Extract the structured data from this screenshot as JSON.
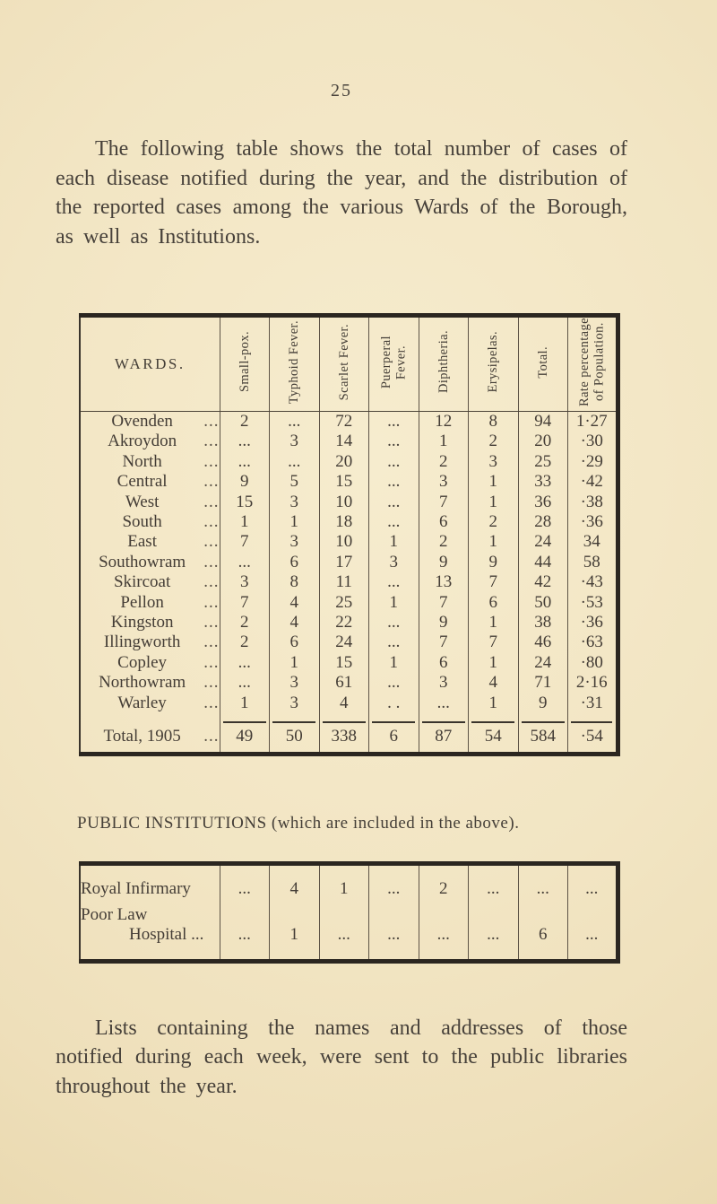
{
  "page": {
    "number": "25",
    "intro": "The following table shows the total number of cases of each disease notified during the year, and the distribution of the reported cases among the various Wards of the Borough, as well as Institutions.",
    "closing": "Lists containing the names and addresses of those notified during each week, were sent to the public libraries throughout the year."
  },
  "colors": {
    "paper": "#f2e5c3",
    "ink": "#46403a",
    "rule_heavy": "#2b2620",
    "rule_light": "#5d5346"
  },
  "main_table": {
    "headers": {
      "wards": "WARDS.",
      "smallpox": "Small-pox.",
      "typhoid": "Typhoid Fever.",
      "scarlet": "Scarlet Fever.",
      "puerperal_1": "Puerperal",
      "puerperal_2": "Fever.",
      "diphtheria": "Diphtheria.",
      "erysipelas": "Erysipelas.",
      "total": "Total.",
      "rate_1": "Rate percentage",
      "rate_2": "of Population."
    },
    "rows": [
      {
        "name": "Ovenden",
        "leader": "...",
        "cells": [
          "2",
          "...",
          "72",
          "...",
          "12",
          "8",
          "94",
          "1·27"
        ]
      },
      {
        "name": "Akroydon",
        "leader": "...",
        "cells": [
          "...",
          "3",
          "14",
          "...",
          "1",
          "2",
          "20",
          "·30"
        ]
      },
      {
        "name": "North",
        "leader": "...",
        "cells": [
          "...",
          "...",
          "20",
          "...",
          "2",
          "3",
          "25",
          "·29"
        ]
      },
      {
        "name": "Central",
        "leader": "...",
        "cells": [
          "9",
          "5",
          "15",
          "...",
          "3",
          "1",
          "33",
          "·42"
        ]
      },
      {
        "name": "West",
        "leader": "...",
        "cells": [
          "15",
          "3",
          "10",
          "...",
          "7",
          "1",
          "36",
          "·38"
        ]
      },
      {
        "name": "South",
        "leader": "...",
        "cells": [
          "1",
          "1",
          "18",
          "...",
          "6",
          "2",
          "28",
          "·36"
        ]
      },
      {
        "name": "East",
        "leader": "...",
        "cells": [
          "7",
          "3",
          "10",
          "1",
          "2",
          "1",
          "24",
          "34"
        ]
      },
      {
        "name": "Southowram",
        "leader": "...",
        "cells": [
          "...",
          "6",
          "17",
          "3",
          "9",
          "9",
          "44",
          "58"
        ]
      },
      {
        "name": "Skircoat",
        "leader": "...",
        "cells": [
          "3",
          "8",
          "11",
          "...",
          "13",
          "7",
          "42",
          "·43"
        ]
      },
      {
        "name": "Pellon",
        "leader": "...",
        "cells": [
          "7",
          "4",
          "25",
          "1",
          "7",
          "6",
          "50",
          "·53"
        ]
      },
      {
        "name": "Kingston",
        "leader": "...",
        "cells": [
          "2",
          "4",
          "22",
          "...",
          "9",
          "1",
          "38",
          "·36"
        ]
      },
      {
        "name": "Illingworth",
        "leader": "...",
        "cells": [
          "2",
          "6",
          "24",
          "...",
          "7",
          "7",
          "46",
          "·63"
        ]
      },
      {
        "name": "Copley",
        "leader": "...",
        "cells": [
          "...",
          "1",
          "15",
          "1",
          "6",
          "1",
          "24",
          "·80"
        ]
      },
      {
        "name": "Northowram",
        "leader": "...",
        "cells": [
          "...",
          "3",
          "61",
          "...",
          "3",
          "4",
          "71",
          "2·16"
        ]
      },
      {
        "name": "Warley",
        "leader": "...",
        "cells": [
          "1",
          "3",
          "4",
          ". .",
          "...",
          "1",
          "9",
          "·31"
        ]
      }
    ],
    "total_row": {
      "name": "Total, 1905",
      "leader": "...",
      "cells": [
        "49",
        "50",
        "338",
        "6",
        "87",
        "54",
        "584",
        "·54"
      ]
    }
  },
  "institutions": {
    "heading": "PUBLIC INSTITUTIONS (which are included in the above).",
    "rows": [
      {
        "name_line1": "Royal Infirmary",
        "name_line2": "",
        "cells": [
          "...",
          "4",
          "1",
          "...",
          "2",
          "...",
          "...",
          "..."
        ]
      },
      {
        "name_line1": "Poor Law",
        "name_line2": "Hospital ...",
        "cells": [
          "...",
          "1",
          "...",
          "...",
          "...",
          "...",
          "6",
          "..."
        ]
      }
    ]
  }
}
